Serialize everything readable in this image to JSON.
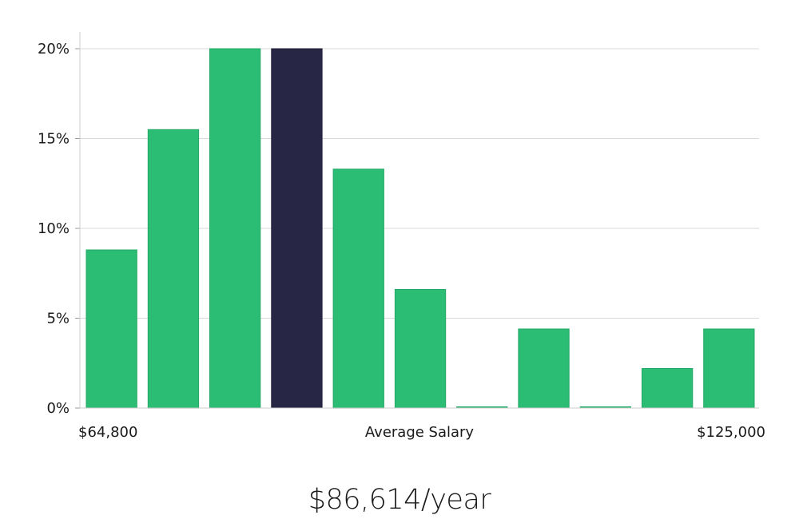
{
  "chart_data": {
    "type": "bar",
    "title": "",
    "xlabel": "Average Salary",
    "ylabel": "",
    "x_range_labels": {
      "min": "$64,800",
      "max": "$125,000"
    },
    "y_ticks": [
      "0%",
      "5%",
      "10%",
      "15%",
      "20%"
    ],
    "ylim": [
      0,
      20
    ],
    "grid": true,
    "values": [
      8.8,
      15.5,
      20.0,
      20.0,
      13.3,
      6.6,
      0.0,
      4.4,
      0.0,
      2.2,
      4.4
    ],
    "highlight_index": 3
  },
  "summary": {
    "average_salary": "$86,614/year"
  },
  "colors": {
    "bar": "#2bbd74",
    "highlight": "#282645",
    "grid": "#d9d9d9",
    "axis": "#cccccc",
    "text": "#1a1a1a"
  }
}
